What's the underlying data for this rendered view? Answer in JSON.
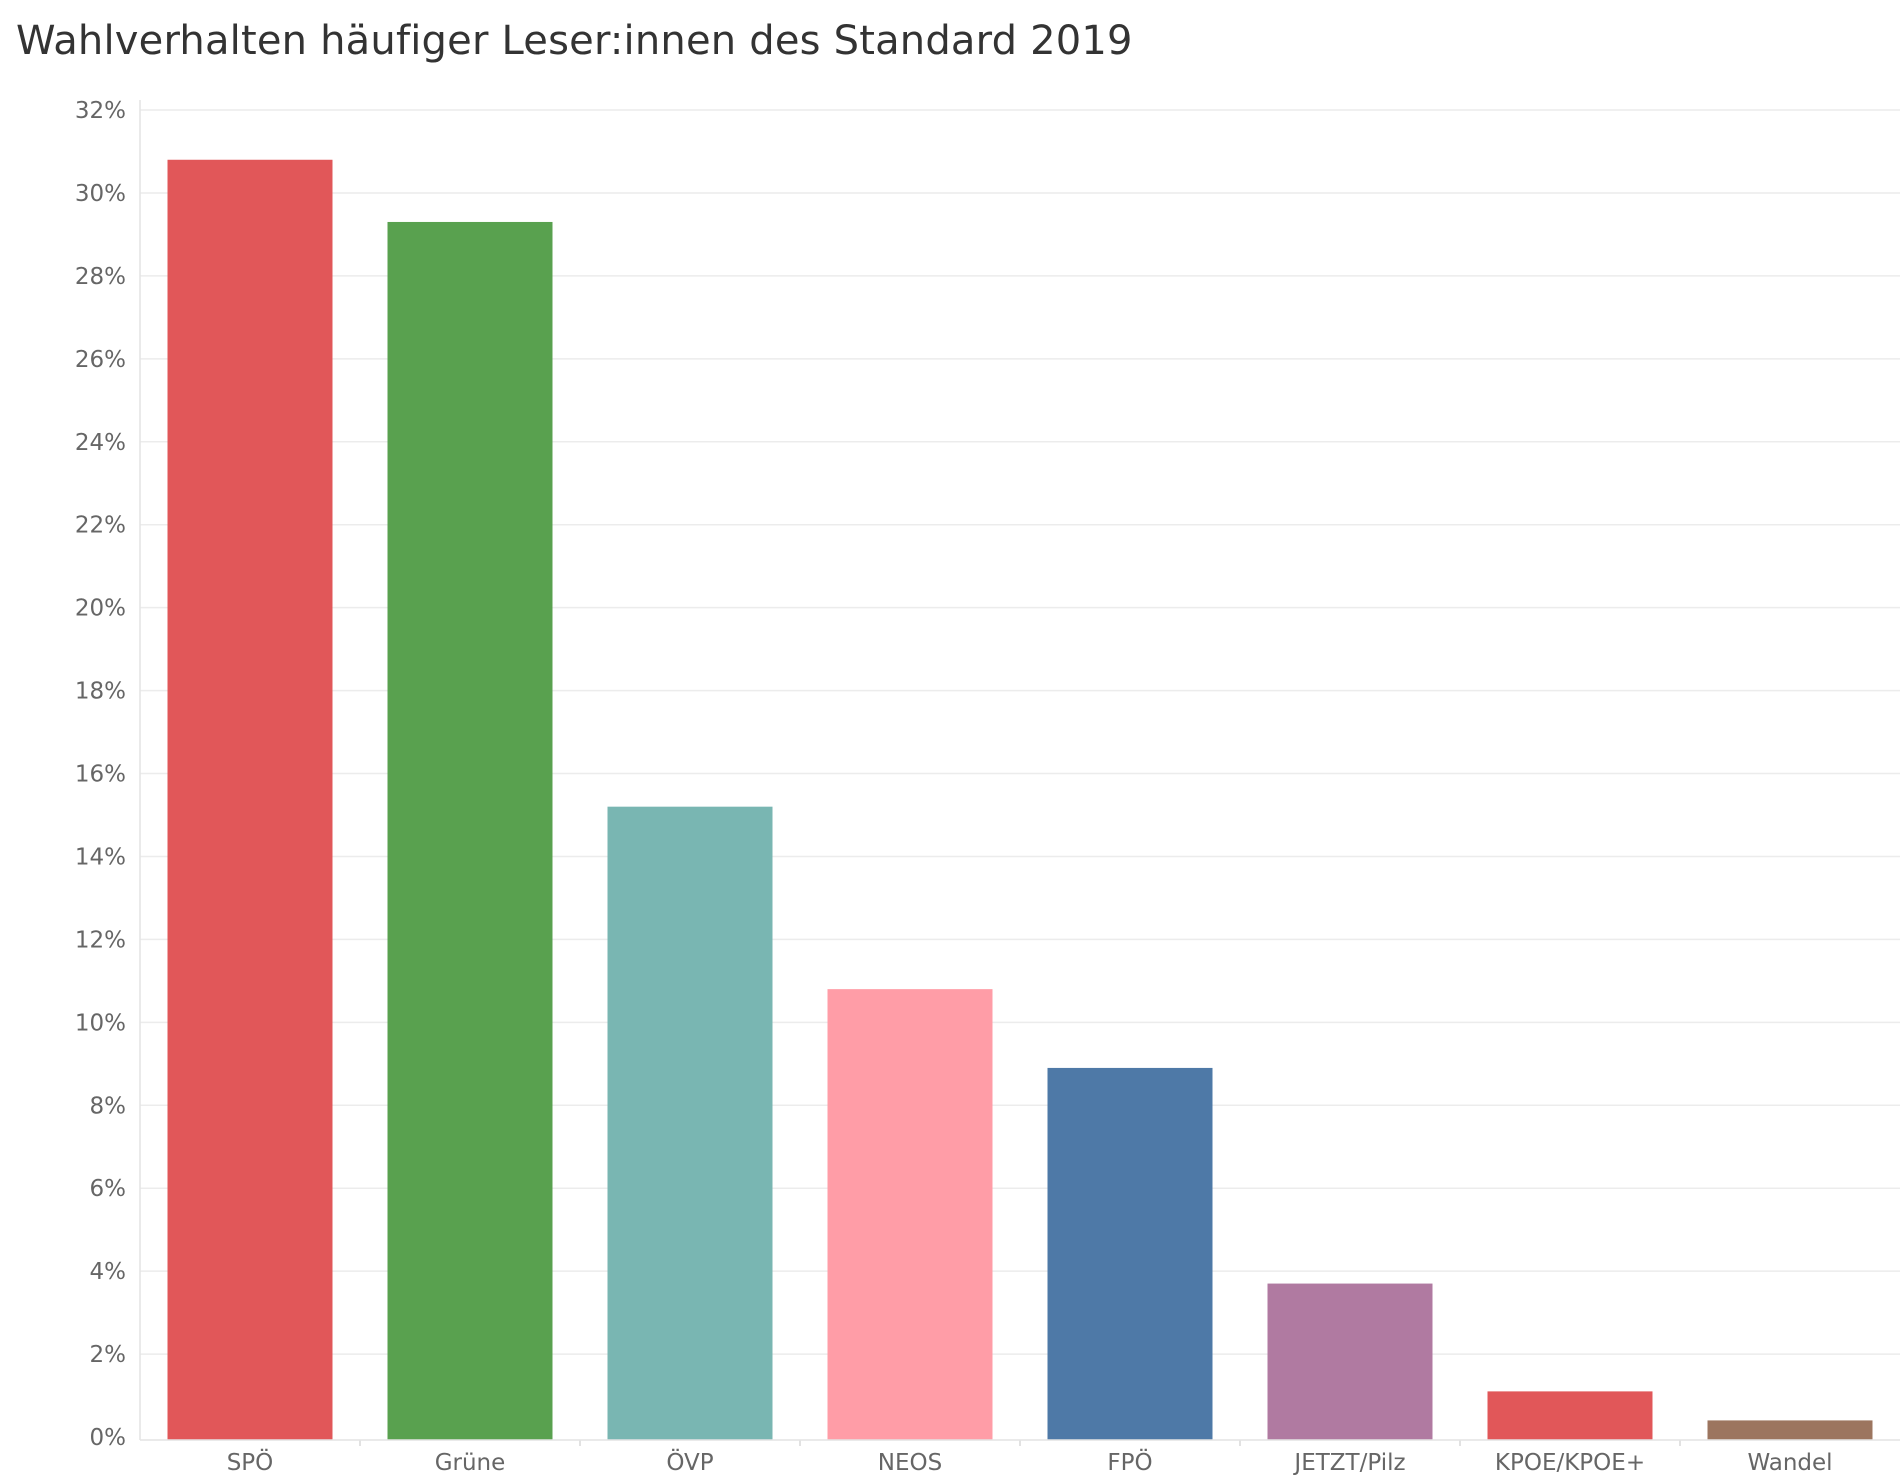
{
  "chart_data": {
    "type": "bar",
    "title": "Wahlverhalten häufiger Leser:innen des Standard 2019",
    "xlabel": "",
    "ylabel": "",
    "ylim": [
      0,
      32
    ],
    "yticks": [
      "0%",
      "2%",
      "4%",
      "6%",
      "8%",
      "10%",
      "12%",
      "14%",
      "16%",
      "18%",
      "20%",
      "22%",
      "24%",
      "26%",
      "28%",
      "30%",
      "32%"
    ],
    "grid": true,
    "legend": "none",
    "categories": [
      "SPÖ",
      "Grüne",
      "ÖVP",
      "NEOS",
      "FPÖ",
      "JETZT/Pilz",
      "KPOE/KPOE+",
      "Wandel"
    ],
    "values": [
      30.8,
      29.3,
      15.2,
      10.8,
      8.9,
      3.7,
      1.1,
      0.4
    ],
    "colors": [
      "#e15759",
      "#59a14f",
      "#79b6b2",
      "#ff9da7",
      "#4e79a7",
      "#b07aa1",
      "#e15759",
      "#9c755f"
    ]
  }
}
